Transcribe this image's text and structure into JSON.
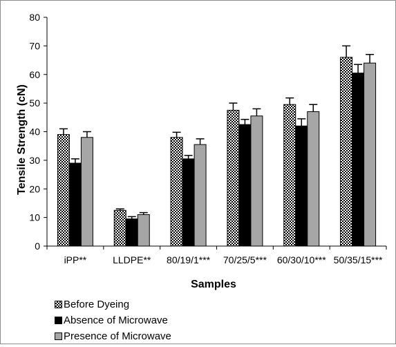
{
  "chart_data": {
    "type": "bar",
    "title": "",
    "xlabel": "Samples",
    "ylabel": "Tensile Strength (cN)",
    "ylim": [
      0,
      80
    ],
    "yticks": [
      0,
      10,
      20,
      30,
      40,
      50,
      60,
      70,
      80
    ],
    "grid": false,
    "legend_position": "bottom-left",
    "categories": [
      "iPP**",
      "LLDPE**",
      "80/19/1***",
      "70/25/5***",
      "60/30/10***",
      "50/35/15***"
    ],
    "series": [
      {
        "name": "Before Dyeing",
        "pattern": "checker",
        "color": "#000000",
        "values": [
          39,
          12.5,
          38,
          47.5,
          49.5,
          66
        ],
        "errors": [
          2,
          0.5,
          1.8,
          2.5,
          2.3,
          4
        ]
      },
      {
        "name": "Absence of Microwave",
        "pattern": "solid",
        "color": "#000000",
        "values": [
          29,
          9.5,
          30.5,
          42.5,
          42,
          60.5
        ],
        "errors": [
          1.5,
          0.8,
          1.2,
          1.8,
          2.5,
          3
        ]
      },
      {
        "name": "Presence of Microwave",
        "pattern": "solid",
        "color": "#a6a6a6",
        "values": [
          38,
          11,
          35.5,
          45.5,
          47,
          64
        ],
        "errors": [
          2,
          0.7,
          2,
          2.5,
          2.5,
          3
        ]
      }
    ]
  }
}
